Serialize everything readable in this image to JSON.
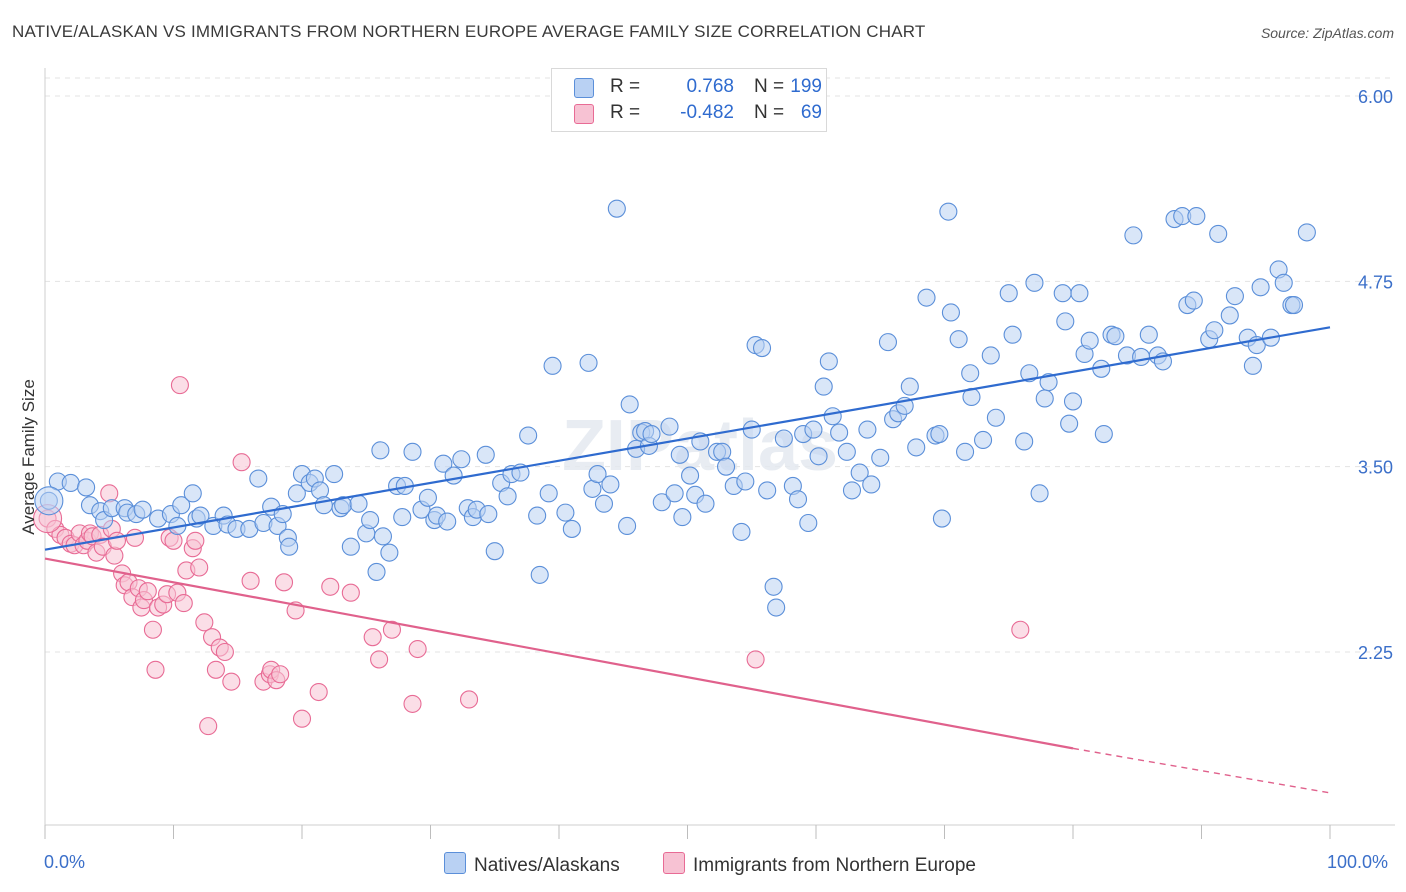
{
  "title": "NATIVE/ALASKAN VS IMMIGRANTS FROM NORTHERN EUROPE AVERAGE FAMILY SIZE CORRELATION CHART",
  "source": "Source: ZipAtlas.com",
  "watermark": "ZIPatlas",
  "legend": {
    "r_label": "R =",
    "n_label": "N =",
    "rows": [
      {
        "r": "0.768",
        "n": "199",
        "color": "#5b8fd9",
        "fill": "#b9d1f3"
      },
      {
        "r": "-0.482",
        "n": "69",
        "color": "#e86b95",
        "fill": "#f7c2d3"
      }
    ]
  },
  "chart_data": {
    "type": "scatter",
    "title": "NATIVE/ALASKAN VS IMMIGRANTS FROM NORTHERN EUROPE AVERAGE FAMILY SIZE CORRELATION CHART",
    "xlabel": "",
    "ylabel": "Average Family Size",
    "xlim": [
      0,
      100
    ],
    "ylim": [
      1.25,
      6.15
    ],
    "x_tick_labels": [
      "0.0%",
      "100.0%"
    ],
    "y_ticks": [
      2.25,
      3.5,
      4.75,
      6.0
    ],
    "y_tick_labels": [
      "2.25",
      "3.50",
      "4.75",
      "6.00"
    ],
    "grid": true,
    "legend_position": "bottom-center",
    "series": [
      {
        "name": "Natives/Alaskans",
        "color": "#5b8fd9",
        "fill": "#b9d1f3",
        "trend": {
          "x": [
            0,
            100
          ],
          "y": [
            2.94,
            4.44
          ]
        },
        "points": [
          [
            0.3,
            3.27
          ],
          [
            1.0,
            3.4
          ],
          [
            2.0,
            3.39
          ],
          [
            3.2,
            3.36
          ],
          [
            3.5,
            3.24
          ],
          [
            4.3,
            3.2
          ],
          [
            4.6,
            3.14
          ],
          [
            5.2,
            3.22
          ],
          [
            6.2,
            3.22
          ],
          [
            6.4,
            3.19
          ],
          [
            7.1,
            3.18
          ],
          [
            7.6,
            3.21
          ],
          [
            8.8,
            3.15
          ],
          [
            9.8,
            3.18
          ],
          [
            10.3,
            3.1
          ],
          [
            10.6,
            3.24
          ],
          [
            11.5,
            3.32
          ],
          [
            11.8,
            3.15
          ],
          [
            12.1,
            3.17
          ],
          [
            13.1,
            3.1
          ],
          [
            13.9,
            3.17
          ],
          [
            14.2,
            3.11
          ],
          [
            14.9,
            3.08
          ],
          [
            15.9,
            3.08
          ],
          [
            16.6,
            3.42
          ],
          [
            17.0,
            3.12
          ],
          [
            17.6,
            3.23
          ],
          [
            18.1,
            3.1
          ],
          [
            18.5,
            3.18
          ],
          [
            18.9,
            3.02
          ],
          [
            19.0,
            2.96
          ],
          [
            19.6,
            3.32
          ],
          [
            20.0,
            3.45
          ],
          [
            20.6,
            3.39
          ],
          [
            21.0,
            3.42
          ],
          [
            21.4,
            3.34
          ],
          [
            21.7,
            3.24
          ],
          [
            22.5,
            3.45
          ],
          [
            23.0,
            3.22
          ],
          [
            23.2,
            3.24
          ],
          [
            23.8,
            2.96
          ],
          [
            24.4,
            3.25
          ],
          [
            25.0,
            3.05
          ],
          [
            25.3,
            3.14
          ],
          [
            25.8,
            2.79
          ],
          [
            26.1,
            3.61
          ],
          [
            26.3,
            3.03
          ],
          [
            26.8,
            2.92
          ],
          [
            27.4,
            3.37
          ],
          [
            27.8,
            3.16
          ],
          [
            28.0,
            3.37
          ],
          [
            28.6,
            3.6
          ],
          [
            29.3,
            3.21
          ],
          [
            29.8,
            3.29
          ],
          [
            30.3,
            3.14
          ],
          [
            30.5,
            3.17
          ],
          [
            31.0,
            3.52
          ],
          [
            31.3,
            3.13
          ],
          [
            31.8,
            3.44
          ],
          [
            32.4,
            3.55
          ],
          [
            32.9,
            3.22
          ],
          [
            33.3,
            3.16
          ],
          [
            33.6,
            3.21
          ],
          [
            34.3,
            3.58
          ],
          [
            34.5,
            3.18
          ],
          [
            35.0,
            2.93
          ],
          [
            35.5,
            3.39
          ],
          [
            36.0,
            3.3
          ],
          [
            36.3,
            3.45
          ],
          [
            37.0,
            3.46
          ],
          [
            37.6,
            3.71
          ],
          [
            38.3,
            3.17
          ],
          [
            38.5,
            2.77
          ],
          [
            39.2,
            3.32
          ],
          [
            39.5,
            4.18
          ],
          [
            40.5,
            3.19
          ],
          [
            41.0,
            3.08
          ],
          [
            42.3,
            4.2
          ],
          [
            42.6,
            3.35
          ],
          [
            43.0,
            3.45
          ],
          [
            43.5,
            3.25
          ],
          [
            44.0,
            3.38
          ],
          [
            44.5,
            5.24
          ],
          [
            45.3,
            3.1
          ],
          [
            45.5,
            3.92
          ],
          [
            46.0,
            3.62
          ],
          [
            46.4,
            3.73
          ],
          [
            46.7,
            3.74
          ],
          [
            47.0,
            3.64
          ],
          [
            47.2,
            3.72
          ],
          [
            48.0,
            3.26
          ],
          [
            48.6,
            3.77
          ],
          [
            49.0,
            3.32
          ],
          [
            49.4,
            3.58
          ],
          [
            49.6,
            3.16
          ],
          [
            50.2,
            3.44
          ],
          [
            50.6,
            3.31
          ],
          [
            51.0,
            3.67
          ],
          [
            51.4,
            3.25
          ],
          [
            52.3,
            3.6
          ],
          [
            52.7,
            3.6
          ],
          [
            53.0,
            3.5
          ],
          [
            53.6,
            3.37
          ],
          [
            54.2,
            3.06
          ],
          [
            54.5,
            3.4
          ],
          [
            55.0,
            3.75
          ],
          [
            55.3,
            4.32
          ],
          [
            55.8,
            4.3
          ],
          [
            56.2,
            3.34
          ],
          [
            56.7,
            2.69
          ],
          [
            56.9,
            2.55
          ],
          [
            57.5,
            3.69
          ],
          [
            58.2,
            3.37
          ],
          [
            58.6,
            3.28
          ],
          [
            59.0,
            3.72
          ],
          [
            59.4,
            3.12
          ],
          [
            59.8,
            3.75
          ],
          [
            60.2,
            3.57
          ],
          [
            60.6,
            4.04
          ],
          [
            61.0,
            4.21
          ],
          [
            61.3,
            3.84
          ],
          [
            61.8,
            3.73
          ],
          [
            62.4,
            3.6
          ],
          [
            62.8,
            3.34
          ],
          [
            63.4,
            3.46
          ],
          [
            64.0,
            3.75
          ],
          [
            64.3,
            3.38
          ],
          [
            65.0,
            3.56
          ],
          [
            65.6,
            4.34
          ],
          [
            66.0,
            3.82
          ],
          [
            66.4,
            3.86
          ],
          [
            66.9,
            3.91
          ],
          [
            67.3,
            4.04
          ],
          [
            67.8,
            3.63
          ],
          [
            68.6,
            4.64
          ],
          [
            69.3,
            3.71
          ],
          [
            69.6,
            3.72
          ],
          [
            69.8,
            3.15
          ],
          [
            70.3,
            5.22
          ],
          [
            70.5,
            4.54
          ],
          [
            71.1,
            4.36
          ],
          [
            71.6,
            3.6
          ],
          [
            72.0,
            4.13
          ],
          [
            72.1,
            3.97
          ],
          [
            73.0,
            3.68
          ],
          [
            73.6,
            4.25
          ],
          [
            74.0,
            3.83
          ],
          [
            75.0,
            4.67
          ],
          [
            75.3,
            4.39
          ],
          [
            76.2,
            3.67
          ],
          [
            76.6,
            4.13
          ],
          [
            77.0,
            4.74
          ],
          [
            77.4,
            3.32
          ],
          [
            77.8,
            3.96
          ],
          [
            78.1,
            4.07
          ],
          [
            79.2,
            4.67
          ],
          [
            79.4,
            4.48
          ],
          [
            79.7,
            3.79
          ],
          [
            80.0,
            3.94
          ],
          [
            80.5,
            4.67
          ],
          [
            80.9,
            4.26
          ],
          [
            81.3,
            4.35
          ],
          [
            82.2,
            4.16
          ],
          [
            82.4,
            3.72
          ],
          [
            83.0,
            4.39
          ],
          [
            83.3,
            4.38
          ],
          [
            84.2,
            4.25
          ],
          [
            84.7,
            5.06
          ],
          [
            85.3,
            4.24
          ],
          [
            85.9,
            4.39
          ],
          [
            86.6,
            4.25
          ],
          [
            87.0,
            4.21
          ],
          [
            87.9,
            5.17
          ],
          [
            88.5,
            5.19
          ],
          [
            88.9,
            4.59
          ],
          [
            89.4,
            4.62
          ],
          [
            89.6,
            5.19
          ],
          [
            90.6,
            4.36
          ],
          [
            91.0,
            4.42
          ],
          [
            91.3,
            5.07
          ],
          [
            92.2,
            4.52
          ],
          [
            92.6,
            4.65
          ],
          [
            93.6,
            4.37
          ],
          [
            94.0,
            4.18
          ],
          [
            94.3,
            4.32
          ],
          [
            94.6,
            4.71
          ],
          [
            95.4,
            4.37
          ],
          [
            96.0,
            4.83
          ],
          [
            96.4,
            4.74
          ],
          [
            97.0,
            4.59
          ],
          [
            97.2,
            4.59
          ],
          [
            98.2,
            5.08
          ]
        ]
      },
      {
        "name": "Immigrants from Northern Europe",
        "color": "#e86b95",
        "fill": "#f7c2d3",
        "trend": {
          "x": [
            0,
            80
          ],
          "y": [
            2.88,
            1.6
          ],
          "dashed_to": [
            100,
            1.3
          ]
        },
        "points": [
          [
            0.2,
            3.15
          ],
          [
            0.8,
            3.08
          ],
          [
            1.2,
            3.04
          ],
          [
            1.6,
            3.02
          ],
          [
            2.0,
            2.98
          ],
          [
            2.3,
            2.97
          ],
          [
            2.7,
            3.05
          ],
          [
            3.0,
            2.97
          ],
          [
            3.3,
            3.0
          ],
          [
            3.5,
            3.05
          ],
          [
            3.7,
            3.03
          ],
          [
            4.0,
            2.92
          ],
          [
            4.3,
            3.04
          ],
          [
            4.5,
            2.96
          ],
          [
            5.0,
            3.32
          ],
          [
            5.2,
            3.08
          ],
          [
            5.4,
            2.9
          ],
          [
            5.6,
            3.0
          ],
          [
            6.0,
            2.78
          ],
          [
            6.2,
            2.7
          ],
          [
            6.5,
            2.72
          ],
          [
            6.8,
            2.62
          ],
          [
            7.0,
            3.02
          ],
          [
            7.3,
            2.68
          ],
          [
            7.5,
            2.55
          ],
          [
            7.7,
            2.6
          ],
          [
            8.0,
            2.66
          ],
          [
            8.4,
            2.4
          ],
          [
            8.6,
            2.13
          ],
          [
            8.8,
            2.55
          ],
          [
            9.2,
            2.57
          ],
          [
            9.5,
            2.64
          ],
          [
            9.7,
            3.02
          ],
          [
            10.0,
            3.0
          ],
          [
            10.3,
            2.65
          ],
          [
            10.5,
            4.05
          ],
          [
            10.8,
            2.58
          ],
          [
            11.0,
            2.8
          ],
          [
            11.5,
            2.95
          ],
          [
            11.7,
            3.0
          ],
          [
            12.0,
            2.82
          ],
          [
            12.4,
            2.45
          ],
          [
            12.7,
            1.75
          ],
          [
            13.0,
            2.35
          ],
          [
            13.3,
            2.13
          ],
          [
            13.6,
            2.28
          ],
          [
            14.0,
            2.25
          ],
          [
            14.5,
            2.05
          ],
          [
            15.3,
            3.53
          ],
          [
            16.0,
            2.73
          ],
          [
            17.0,
            2.05
          ],
          [
            17.5,
            2.1
          ],
          [
            17.6,
            2.13
          ],
          [
            18.0,
            2.06
          ],
          [
            18.3,
            2.1
          ],
          [
            18.6,
            2.72
          ],
          [
            19.5,
            2.53
          ],
          [
            20.0,
            1.8
          ],
          [
            21.3,
            1.98
          ],
          [
            22.2,
            2.69
          ],
          [
            23.8,
            2.65
          ],
          [
            25.5,
            2.35
          ],
          [
            26.0,
            2.2
          ],
          [
            27.0,
            2.4
          ],
          [
            28.6,
            1.9
          ],
          [
            29.0,
            2.27
          ],
          [
            33.0,
            1.93
          ],
          [
            55.3,
            2.2
          ],
          [
            75.9,
            2.4
          ]
        ]
      }
    ]
  }
}
